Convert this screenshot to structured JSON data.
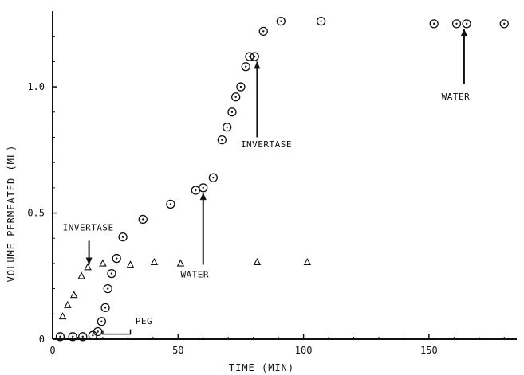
{
  "chart_data": {
    "type": "scatter",
    "title": "",
    "xlabel": "TIME (MIN)",
    "ylabel": "VOLUME PERMEATED (ML)",
    "xlim": [
      0,
      185
    ],
    "ylim": [
      0,
      1.3
    ],
    "x_ticks": [
      0,
      50,
      100,
      150
    ],
    "y_ticks": [
      0,
      0.5,
      1.0
    ],
    "x_tick_labels": [
      "0",
      "50",
      "100",
      "150"
    ],
    "y_tick_labels": [
      "0",
      "0.5",
      "1.0"
    ],
    "grid": false,
    "legend": "none",
    "series": [
      {
        "marker": "circle-dot",
        "points": [
          {
            "x": 3,
            "y": 0.01
          },
          {
            "x": 8,
            "y": 0.01
          },
          {
            "x": 12,
            "y": 0.01
          },
          {
            "x": 16,
            "y": 0.015
          },
          {
            "x": 18,
            "y": 0.03
          },
          {
            "x": 19.5,
            "y": 0.07
          },
          {
            "x": 21,
            "y": 0.125
          },
          {
            "x": 22,
            "y": 0.2
          },
          {
            "x": 23.5,
            "y": 0.26
          },
          {
            "x": 25.5,
            "y": 0.32
          },
          {
            "x": 28,
            "y": 0.405
          },
          {
            "x": 36,
            "y": 0.475
          },
          {
            "x": 47,
            "y": 0.535
          },
          {
            "x": 57,
            "y": 0.59
          },
          {
            "x": 60,
            "y": 0.6
          },
          {
            "x": 64,
            "y": 0.64
          },
          {
            "x": 67.5,
            "y": 0.79
          },
          {
            "x": 69.5,
            "y": 0.84
          },
          {
            "x": 71.5,
            "y": 0.9
          },
          {
            "x": 73,
            "y": 0.96
          },
          {
            "x": 75,
            "y": 1.0
          },
          {
            "x": 77,
            "y": 1.08
          },
          {
            "x": 78.5,
            "y": 1.12
          },
          {
            "x": 80.5,
            "y": 1.12
          },
          {
            "x": 84,
            "y": 1.22
          },
          {
            "x": 91,
            "y": 1.26
          },
          {
            "x": 107,
            "y": 1.26
          },
          {
            "x": 152,
            "y": 1.25
          },
          {
            "x": 161,
            "y": 1.25
          },
          {
            "x": 165,
            "y": 1.25
          },
          {
            "x": 180,
            "y": 1.25
          }
        ]
      },
      {
        "marker": "triangle",
        "points": [
          {
            "x": 4,
            "y": 0.09
          },
          {
            "x": 6,
            "y": 0.135
          },
          {
            "x": 8.5,
            "y": 0.175
          },
          {
            "x": 11.5,
            "y": 0.25
          },
          {
            "x": 14,
            "y": 0.285
          },
          {
            "x": 20,
            "y": 0.3
          },
          {
            "x": 31,
            "y": 0.295
          },
          {
            "x": 40.5,
            "y": 0.305
          },
          {
            "x": 51,
            "y": 0.3
          },
          {
            "x": 81.5,
            "y": 0.305
          },
          {
            "x": 101.5,
            "y": 0.305
          }
        ]
      }
    ],
    "annotations": [
      {
        "text": "INVERTASE",
        "label_x": 4,
        "label_y": 0.43,
        "arrow_to": {
          "x": 14.5,
          "y": 0.295
        },
        "arrow_from": {
          "x": 14.5,
          "y": 0.39
        }
      },
      {
        "text": "WATER",
        "label_x": 51,
        "label_y": 0.245,
        "arrow_to": {
          "x": 60,
          "y": 0.58
        },
        "arrow_from": {
          "x": 60,
          "y": 0.295
        }
      },
      {
        "text": "INVERTASE",
        "label_x": 75,
        "label_y": 0.76,
        "arrow_to": {
          "x": 81.5,
          "y": 1.1
        },
        "arrow_from": {
          "x": 81.5,
          "y": 0.8
        }
      },
      {
        "text": "WATER",
        "label_x": 155,
        "label_y": 0.95,
        "arrow_to": {
          "x": 164,
          "y": 1.23
        },
        "arrow_from": {
          "x": 164,
          "y": 1.01
        }
      },
      {
        "text": "PEG",
        "label_x": 33,
        "label_y": 0.06,
        "bracket": {
          "x_start": 20,
          "x_end": 31,
          "y": 0.02
        }
      }
    ]
  }
}
